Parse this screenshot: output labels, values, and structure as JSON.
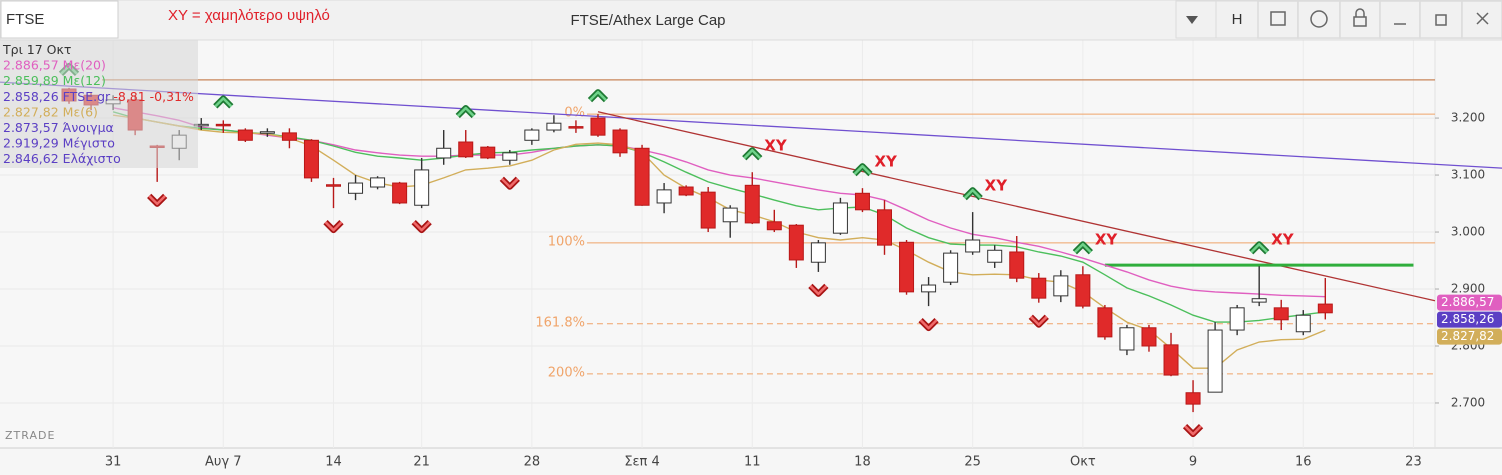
{
  "toolbar": {
    "symbol": "FTSE",
    "note": "XY = χαμηλότερο υψηλό",
    "button": "H"
  },
  "chart_data": {
    "type": "candlestick",
    "title": "FTSE/Athex Large Cap",
    "watermark": "ZTRADE",
    "date": "Τρι 17 Οκτ",
    "categories": [
      null,
      null,
      "31",
      null,
      null,
      null,
      null,
      "Αυγ 7",
      null,
      null,
      null,
      null,
      "14",
      null,
      null,
      null,
      "21",
      null,
      null,
      null,
      null,
      "28",
      null,
      null,
      null,
      null,
      "Σεπ 4",
      null,
      null,
      null,
      null,
      "11",
      null,
      null,
      null,
      null,
      "18",
      null,
      null,
      null,
      null,
      "25",
      null,
      null,
      null,
      null,
      "Οκτ",
      null,
      null,
      null,
      null,
      "9",
      null,
      null,
      null,
      null,
      "16",
      null,
      null,
      null,
      null,
      "23"
    ],
    "open": [
      3251,
      3240,
      3225,
      3232,
      3151,
      3147,
      3188,
      3189,
      3179,
      3174,
      3174,
      3161,
      3083,
      3068,
      3079,
      3086,
      3047,
      3130,
      3158,
      3149,
      3126,
      3161,
      3179,
      3185,
      3200,
      3179,
      3147,
      3051,
      3079,
      3070,
      3018,
      3082,
      3018,
      3012,
      2947,
      2998,
      3068,
      3039,
      2982,
      2895,
      2912,
      2965,
      2947,
      2965,
      2919,
      2888,
      2925,
      2867,
      2793,
      2832,
      2802,
      2718,
      2719,
      2828,
      2877,
      2867,
      2825,
      2873.57,
      null,
      null,
      null,
      null
    ],
    "high": [
      3253,
      3245,
      3240,
      3240,
      3153,
      3179,
      3200,
      3196,
      3182,
      3182,
      3182,
      3163,
      3095,
      3100,
      3098,
      3088,
      3130,
      3179,
      3179,
      3151,
      3144,
      3182,
      3205,
      3196,
      3207,
      3182,
      3153,
      3086,
      3082,
      3079,
      3047,
      3105,
      3039,
      3014,
      2986,
      3060,
      3077,
      3056,
      2986,
      2921,
      2968,
      3035,
      2977,
      2993,
      2928,
      2933,
      2940,
      2872,
      2837,
      2837,
      2823,
      2740,
      2842,
      2872,
      2940,
      2881,
      2863,
      2919.29,
      null,
      null,
      null,
      null
    ],
    "low": [
      3225,
      3214,
      3214,
      3170,
      3088,
      3126,
      3179,
      3174,
      3158,
      3167,
      3147,
      3088,
      3042,
      3056,
      3075,
      3049,
      3042,
      3118,
      3130,
      3128,
      3118,
      3153,
      3175,
      3174,
      3167,
      3132,
      3046,
      3033,
      3063,
      3000,
      2990,
      3014,
      3000,
      2937,
      2930,
      2995,
      3035,
      2960,
      2890,
      2870,
      2907,
      2960,
      2937,
      2912,
      2876,
      2877,
      2866,
      2811,
      2784,
      2790,
      2747,
      2684,
      2719,
      2819,
      2870,
      2828,
      2819,
      2846.62,
      null,
      null,
      null,
      null
    ],
    "close": [
      3230,
      3223,
      3232,
      3179,
      3149,
      3170,
      3189,
      3187,
      3161,
      3176,
      3161,
      3095,
      3081,
      3086,
      3095,
      3051,
      3109,
      3147,
      3132,
      3130,
      3139,
      3179,
      3191,
      3183,
      3170,
      3139,
      3047,
      3074,
      3065,
      3007,
      3042,
      3016,
      3004,
      2951,
      2981,
      3051,
      3039,
      2977,
      2895,
      2907,
      2963,
      2986,
      2968,
      2919,
      2884,
      2923,
      2870,
      2816,
      2832,
      2800,
      2749,
      2698,
      2828,
      2867,
      2883,
      2846,
      2854,
      2858.26,
      null,
      null,
      null,
      null
    ],
    "up_color": "#ffffff",
    "down_color": "#e02a2a",
    "series": [
      {
        "name": "Με(20)",
        "color": "#e05fc0",
        "value_label": "2.886,57",
        "badge": true,
        "values": [
          null,
          null,
          3218,
          3211,
          3204,
          3196,
          3184,
          3179,
          3175,
          3170,
          3165,
          3161,
          3153,
          3144,
          3139,
          3135,
          3133,
          3133,
          3135,
          3135,
          3135,
          3140,
          3147,
          3151,
          3153,
          3151,
          3144,
          3135,
          3123,
          3109,
          3100,
          3095,
          3088,
          3081,
          3074,
          3068,
          3065,
          3056,
          3039,
          3021,
          3007,
          2996,
          2990,
          2982,
          2975,
          2965,
          2954,
          2942,
          2930,
          2916,
          2905,
          2898,
          2895,
          2893,
          2891,
          2889,
          2888,
          2886.57,
          null,
          null,
          null,
          null
        ]
      },
      {
        "name": "Με(12)",
        "color": "#4cbf5c",
        "value_label": "2.859,89",
        "badge": false,
        "values": [
          null,
          null,
          3211,
          3200,
          3193,
          3186,
          3182,
          3179,
          3175,
          3172,
          3167,
          3161,
          3151,
          3140,
          3133,
          3130,
          3126,
          3130,
          3135,
          3139,
          3140,
          3144,
          3147,
          3151,
          3153,
          3151,
          3140,
          3123,
          3105,
          3088,
          3077,
          3067,
          3056,
          3046,
          3039,
          3042,
          3044,
          3030,
          3007,
          2990,
          2979,
          2977,
          2977,
          2974,
          2965,
          2958,
          2947,
          2925,
          2902,
          2888,
          2872,
          2854,
          2842,
          2842,
          2845,
          2850,
          2855,
          2859.89,
          null,
          null,
          null,
          null
        ]
      },
      {
        "name": "Με(6)",
        "color": "#d2ae5a",
        "value_label": "2.827,82",
        "badge": true,
        "values": [
          null,
          null,
          3205,
          3200,
          3193,
          3186,
          3179,
          3175,
          3174,
          3172,
          3165,
          3151,
          3126,
          3100,
          3086,
          3079,
          3082,
          3095,
          3109,
          3112,
          3116,
          3126,
          3144,
          3154,
          3156,
          3153,
          3140,
          3100,
          3077,
          3060,
          3039,
          3030,
          3018,
          3000,
          2990,
          2986,
          2990,
          2986,
          2968,
          2947,
          2930,
          2925,
          2926,
          2925,
          2916,
          2912,
          2895,
          2867,
          2842,
          2828,
          2796,
          2761,
          2761,
          2793,
          2807,
          2811,
          2812,
          2827.82,
          null,
          null,
          null,
          null
        ]
      }
    ],
    "close_info": {
      "label": "2.858,26",
      "name": "FTSE.gr",
      "change": "-8,81 -0,31%",
      "color": "#5b3fc4",
      "change_color": "#e02a2a",
      "badge": true
    },
    "ohlc_info": [
      {
        "label": "2.873,57",
        "name": "Άνοιγμα"
      },
      {
        "label": "2.919,29",
        "name": "Μέγιστο"
      },
      {
        "label": "2.846,62",
        "name": "Ελάχιστο"
      }
    ],
    "ylim": [
      2621,
      3337
    ],
    "yticks": [
      {
        "value": 3200,
        "label": "3.200"
      },
      {
        "value": 3100,
        "label": "3.100"
      },
      {
        "value": 3000,
        "label": "3.000"
      },
      {
        "value": 2900,
        "label": "2.900"
      },
      {
        "value": 2800,
        "label": "2.800"
      },
      {
        "value": 2700,
        "label": "2.700"
      }
    ],
    "grid": true,
    "levels": [
      {
        "price": 3267,
        "start": 2,
        "color": "#c8865a"
      }
    ],
    "fib_color": "#f0a46a",
    "fib_levels": [
      {
        "label": "0%",
        "price": 3207,
        "start": 24,
        "dashed": false
      },
      {
        "label": "100%",
        "price": 2981,
        "start": 24,
        "dashed": false
      },
      {
        "label": "161.8%",
        "price": 2839,
        "start": 24,
        "dashed": true
      },
      {
        "label": "200%",
        "price": 2751,
        "start": 24,
        "dashed": true
      }
    ],
    "trend_lines": [
      {
        "from": [
          0,
          3256
        ],
        "to": [
          61,
          3121
        ],
        "color": "#7050d0",
        "extend": "both"
      },
      {
        "from": [
          24,
          3211
        ],
        "to": [
          61,
          2888
        ],
        "color": "#b03434",
        "extend": "right"
      },
      {
        "from": [
          47,
          2942
        ],
        "to": [
          61,
          2942
        ],
        "color": "#2fae3c",
        "extend": "none"
      }
    ],
    "pivot_highs": [
      0,
      7,
      18,
      24,
      31,
      36,
      41,
      46,
      54
    ],
    "pivot_lows": [
      4,
      12,
      16,
      20,
      34,
      39,
      44,
      51
    ],
    "signals": [
      31,
      36,
      41,
      46,
      54
    ],
    "signal_label": "XY"
  }
}
